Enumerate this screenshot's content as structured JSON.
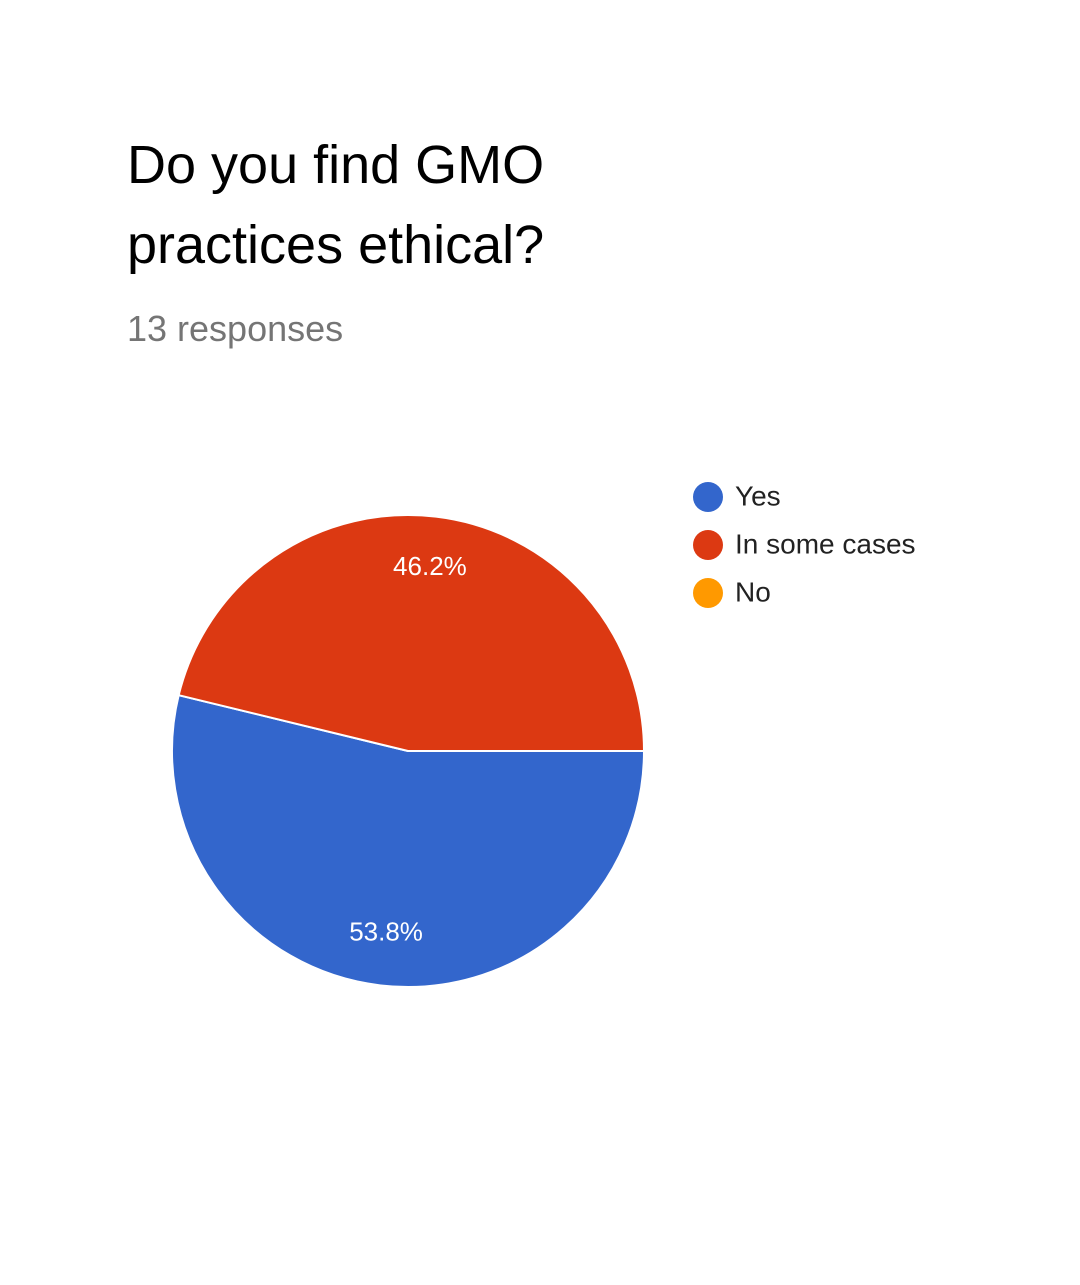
{
  "chart_data": {
    "type": "pie",
    "title": "Do you find GMO practices ethical?",
    "subtitle": "13 responses",
    "categories": [
      "Yes",
      "In some cases",
      "No"
    ],
    "values": [
      53.8,
      46.2,
      0
    ],
    "value_labels": [
      "53.8%",
      "46.2%",
      null
    ],
    "colors": [
      "#3366cc",
      "#dc3912",
      "#ff9900"
    ],
    "legend": "right"
  }
}
